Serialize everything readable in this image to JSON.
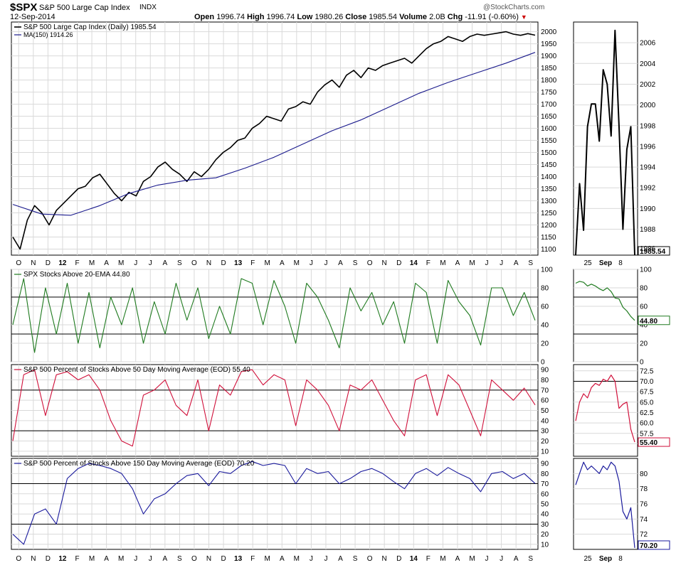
{
  "header": {
    "symbol": "$SPX",
    "name": "S&P 500 Large Cap Index",
    "exchange": "INDX",
    "date": "12-Sep-2014",
    "watermark": "@StockCharts.com",
    "open_label": "Open",
    "open_value": "1996.74",
    "high_label": "High",
    "high_value": "1996.74",
    "low_label": "Low",
    "low_value": "1980.26",
    "close_label": "Close",
    "close_value": "1985.54",
    "volume_label": "Volume",
    "volume_value": "2.0B",
    "chg_label": "Chg",
    "chg_value": "-11.91 (-0.60%)",
    "chg_arrow": "▼"
  },
  "colors": {
    "price": "#000000",
    "ma": "#1a1a8c",
    "ema20": "#1f7a1f",
    "above50": "#d0103a",
    "above150": "#1a1a9c",
    "grid": "#d9d9d9",
    "refline": "#000000"
  },
  "x_axis": {
    "main_labels": [
      "O",
      "N",
      "D",
      "12",
      "F",
      "M",
      "A",
      "M",
      "J",
      "J",
      "A",
      "S",
      "O",
      "N",
      "D",
      "13",
      "F",
      "M",
      "A",
      "M",
      "J",
      "J",
      "A",
      "S",
      "O",
      "N",
      "D",
      "14",
      "F",
      "M",
      "A",
      "M",
      "J",
      "J",
      "A",
      "S"
    ],
    "bold_labels": [
      "12",
      "13",
      "14"
    ],
    "zoom_labels": [
      "25",
      "Sep",
      "8"
    ]
  },
  "chart_data": [
    {
      "type": "line",
      "title": "S&P 500 Large Cap Index (Daily) 1985.54",
      "x_range": [
        "2011-10",
        "2014-09-12"
      ],
      "ylim": [
        1075,
        2040
      ],
      "y_ticks": [
        1100,
        1150,
        1200,
        1250,
        1300,
        1350,
        1400,
        1450,
        1500,
        1550,
        1600,
        1650,
        1700,
        1750,
        1800,
        1850,
        1900,
        1950,
        2000
      ],
      "series": [
        {
          "name": "S&P 500 Large Cap Index (Daily) 1985.54",
          "x": [
            0,
            2,
            4,
            6,
            8,
            10,
            12,
            14,
            16,
            18,
            20,
            22,
            24,
            26,
            28,
            30,
            32,
            34,
            36,
            38,
            40,
            42,
            44,
            46,
            48,
            50,
            52,
            54,
            56,
            58,
            60,
            62,
            64,
            66,
            68,
            70,
            72,
            74,
            76,
            78,
            80,
            82,
            84,
            86,
            88,
            90,
            92,
            94,
            96,
            98,
            100,
            102,
            104,
            106,
            108,
            110,
            112,
            114,
            116,
            118,
            120,
            122,
            124,
            126,
            128,
            130,
            132,
            134,
            136,
            138,
            140,
            142,
            144
          ],
          "values": [
            1150,
            1100,
            1220,
            1280,
            1250,
            1200,
            1260,
            1290,
            1320,
            1350,
            1360,
            1395,
            1410,
            1370,
            1330,
            1300,
            1335,
            1320,
            1380,
            1400,
            1440,
            1460,
            1430,
            1410,
            1380,
            1420,
            1400,
            1430,
            1470,
            1500,
            1520,
            1550,
            1560,
            1600,
            1620,
            1650,
            1640,
            1630,
            1680,
            1690,
            1710,
            1700,
            1750,
            1780,
            1800,
            1770,
            1820,
            1840,
            1810,
            1850,
            1840,
            1860,
            1870,
            1880,
            1890,
            1870,
            1900,
            1930,
            1950,
            1960,
            1980,
            1970,
            1960,
            1980,
            1990,
            1985,
            1990,
            1995,
            2000,
            1990,
            1985,
            1992,
            1985.54
          ]
        },
        {
          "name": "MA(150) 1914.26",
          "x": [
            0,
            8,
            16,
            24,
            32,
            40,
            48,
            56,
            64,
            72,
            80,
            88,
            96,
            104,
            112,
            120,
            128,
            136,
            144
          ],
          "values": [
            1285,
            1245,
            1240,
            1280,
            1330,
            1365,
            1385,
            1395,
            1435,
            1480,
            1535,
            1590,
            1635,
            1690,
            1745,
            1790,
            1830,
            1870,
            1914.26
          ]
        }
      ]
    },
    {
      "type": "line",
      "title": "SPX Stocks Above 20-EMA 44.80",
      "ylim": [
        0,
        100
      ],
      "y_ticks": [
        0,
        20,
        40,
        60,
        80,
        100
      ],
      "ref_lines": [
        70,
        30
      ],
      "series": [
        {
          "name": "SPX Stocks Above 20-EMA 44.80",
          "x": [
            0,
            3,
            6,
            9,
            12,
            15,
            18,
            21,
            24,
            27,
            30,
            33,
            36,
            39,
            42,
            45,
            48,
            51,
            54,
            57,
            60,
            63,
            66,
            69,
            72,
            75,
            78,
            81,
            84,
            87,
            90,
            93,
            96,
            99,
            102,
            105,
            108,
            111,
            114,
            117,
            120,
            123,
            126,
            129,
            132,
            135,
            138,
            141,
            144
          ],
          "values": [
            40,
            90,
            10,
            80,
            30,
            85,
            20,
            75,
            15,
            70,
            40,
            80,
            20,
            65,
            30,
            85,
            45,
            80,
            25,
            60,
            30,
            90,
            85,
            40,
            88,
            60,
            20,
            85,
            70,
            45,
            15,
            80,
            55,
            75,
            40,
            65,
            20,
            85,
            75,
            20,
            88,
            65,
            50,
            18,
            80,
            80,
            50,
            75,
            44.8
          ]
        }
      ]
    },
    {
      "type": "line",
      "title": "S&P 500 Percent of Stocks Above 50 Day Moving Average (EOD) 55.40",
      "ylim": [
        5,
        95
      ],
      "y_ticks": [
        10,
        20,
        30,
        40,
        50,
        60,
        70,
        80,
        90
      ],
      "ref_lines": [
        70,
        30
      ],
      "series": [
        {
          "name": "S&P 500 Percent of Stocks Above 50 Day Moving Average (EOD) 55.40",
          "x": [
            0,
            3,
            6,
            9,
            12,
            15,
            18,
            21,
            24,
            27,
            30,
            33,
            36,
            39,
            42,
            45,
            48,
            51,
            54,
            57,
            60,
            63,
            66,
            69,
            72,
            75,
            78,
            81,
            84,
            87,
            90,
            93,
            96,
            99,
            102,
            105,
            108,
            111,
            114,
            117,
            120,
            123,
            126,
            129,
            132,
            135,
            138,
            141,
            144
          ],
          "values": [
            20,
            85,
            90,
            45,
            85,
            88,
            80,
            85,
            70,
            40,
            20,
            15,
            65,
            70,
            80,
            55,
            45,
            80,
            30,
            75,
            65,
            88,
            90,
            75,
            85,
            80,
            35,
            80,
            70,
            55,
            30,
            75,
            70,
            80,
            60,
            40,
            25,
            80,
            85,
            45,
            85,
            75,
            50,
            25,
            80,
            70,
            60,
            72,
            55.4
          ]
        }
      ]
    },
    {
      "type": "line",
      "title": "S&P 500 Percent of Stocks Above 150 Day Moving Average (EOD) 70.20",
      "ylim": [
        5,
        95
      ],
      "y_ticks": [
        10,
        20,
        30,
        40,
        50,
        60,
        70,
        80,
        90
      ],
      "ref_lines": [
        70,
        30
      ],
      "series": [
        {
          "name": "S&P 500 Percent of Stocks Above 150 Day Moving Average (EOD) 70.20",
          "x": [
            0,
            3,
            6,
            9,
            12,
            15,
            18,
            21,
            24,
            27,
            30,
            33,
            36,
            39,
            42,
            45,
            48,
            51,
            54,
            57,
            60,
            63,
            66,
            69,
            72,
            75,
            78,
            81,
            84,
            87,
            90,
            93,
            96,
            99,
            102,
            105,
            108,
            111,
            114,
            117,
            120,
            123,
            126,
            129,
            132,
            135,
            138,
            141,
            144
          ],
          "values": [
            20,
            10,
            40,
            45,
            30,
            75,
            85,
            90,
            88,
            85,
            80,
            65,
            40,
            55,
            60,
            70,
            78,
            80,
            68,
            82,
            80,
            88,
            92,
            88,
            90,
            88,
            70,
            85,
            80,
            82,
            70,
            75,
            82,
            85,
            80,
            72,
            65,
            80,
            85,
            78,
            86,
            80,
            75,
            62,
            80,
            82,
            75,
            80,
            70.2
          ]
        }
      ]
    }
  ],
  "zoom_data": [
    {
      "ylim": [
        1985.5,
        2008
      ],
      "y_ticks": [
        1988,
        1990,
        1992,
        1994,
        1996,
        1998,
        2000,
        2002,
        2004,
        2006
      ],
      "clipped_tick": "1986",
      "last_label": "1985.54",
      "values": [
        1985.5,
        1992.4,
        1987.9,
        1997.9,
        2000.1,
        2000.1,
        1996.5,
        2003.4,
        2002.0,
        1997.0,
        2007.2,
        1998.0,
        1988.0,
        1995.7,
        1997.9,
        1985.5
      ]
    },
    {
      "ylim": [
        0,
        100
      ],
      "y_ticks": [
        0,
        20,
        40,
        60,
        80,
        100
      ],
      "ref_lines": [
        70,
        30
      ],
      "last_label": "44.80",
      "values": [
        85,
        87,
        86,
        82,
        84,
        82,
        79,
        77,
        80,
        76,
        69,
        68,
        59,
        55,
        49,
        44.8
      ]
    },
    {
      "ylim": [
        52,
        74
      ],
      "y_ticks": [
        55.0,
        57.5,
        60.0,
        62.5,
        65.0,
        67.5,
        70.0,
        72.5
      ],
      "ref_lines": [
        70
      ],
      "last_label": "55.40",
      "values": [
        60.5,
        65.0,
        67.0,
        66.0,
        68.5,
        69.5,
        69.0,
        70.5,
        70.0,
        71.5,
        70.0,
        63.5,
        64.5,
        65.0,
        58.5,
        55.4
      ]
    },
    {
      "ylim": [
        70,
        82
      ],
      "y_ticks": [
        72,
        74,
        76,
        78,
        80
      ],
      "ref_lines": [
        70
      ],
      "last_label": "70.20",
      "values": [
        78.5,
        80.0,
        81.5,
        80.5,
        81.0,
        80.5,
        80.0,
        81.0,
        80.5,
        81.5,
        81.0,
        79.0,
        75.0,
        74.0,
        75.5,
        70.2
      ]
    }
  ]
}
